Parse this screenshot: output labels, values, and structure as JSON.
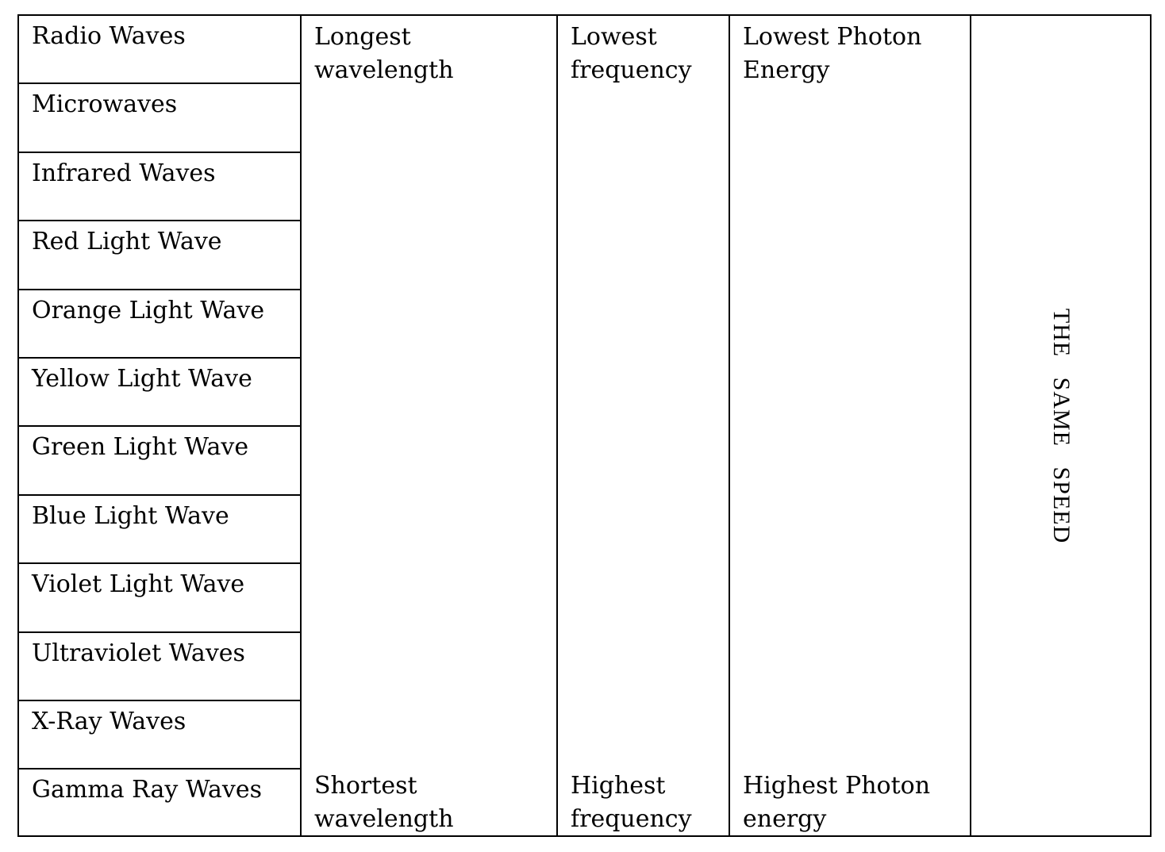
{
  "wave_types": [
    "Radio Waves",
    "Microwaves",
    "Infrared Waves",
    "Red Light Wave",
    "Orange Light Wave",
    "Yellow Light Wave",
    "Green Light Wave",
    "Blue Light Wave",
    "Violet Light Wave",
    "Ultraviolet Waves",
    "X-Ray Waves",
    "Gamma Ray Waves"
  ],
  "wavelength": {
    "top": "Longest wavelength",
    "bottom": "Shortest wavelength"
  },
  "frequency": {
    "top": "Lowest frequency",
    "bottom": "Highest frequency"
  },
  "energy": {
    "top": "Lowest Photon Energy",
    "bottom": "Highest Photon energy"
  },
  "speed": {
    "label": "THE   SAME   SPEED"
  }
}
